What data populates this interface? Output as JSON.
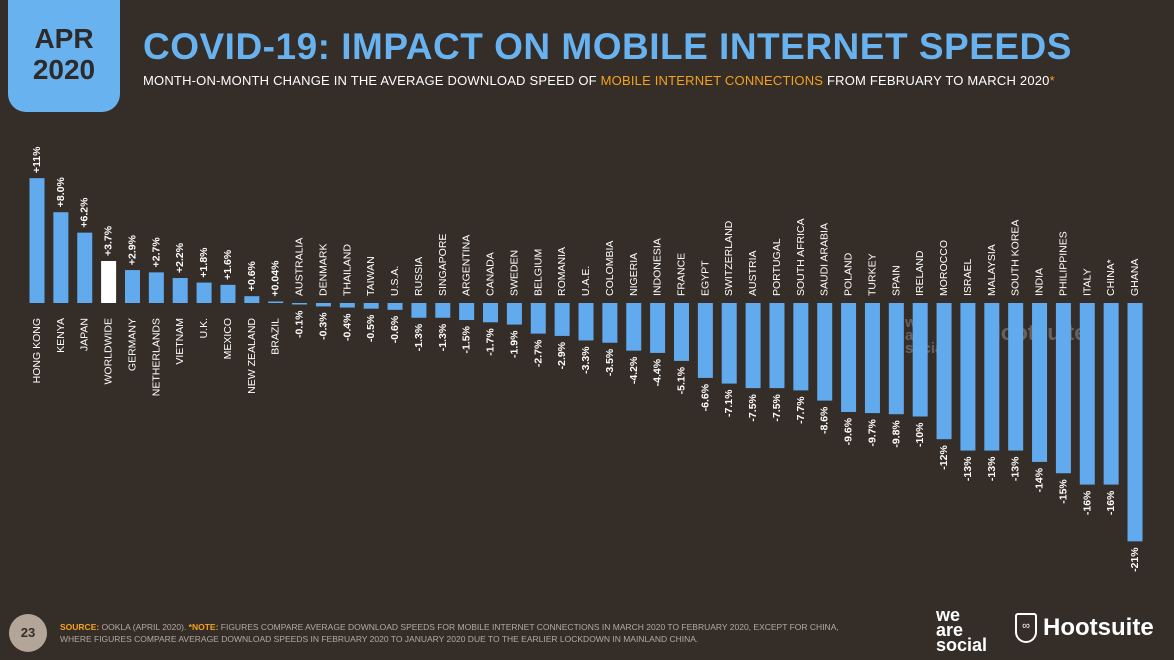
{
  "header": {
    "month": "APR",
    "year": "2020",
    "title": "COVID-19: IMPACT ON MOBILE INTERNET SPEEDS",
    "subtitle_pre": "MONTH-ON-MONTH CHANGE IN THE AVERAGE DOWNLOAD SPEED OF ",
    "subtitle_hl": "MOBILE INTERNET CONNECTIONS",
    "subtitle_post": " FROM FEBRUARY TO MARCH 2020",
    "subtitle_star": "*"
  },
  "footer": {
    "page": "23",
    "source_label": "SOURCE:",
    "source_text": " OOKLA (APRIL 2020). ",
    "note_label": "*NOTE:",
    "note_text": " FIGURES COMPARE AVERAGE DOWNLOAD SPEEDS FOR MOBILE INTERNET CONNECTIONS IN MARCH 2020 TO FEBRUARY 2020, EXCEPT FOR CHINA,",
    "note_text2": "WHERE FIGURES COMPARE AVERAGE DOWNLOAD SPEEDS IN FEBRUARY 2020 TO JANUARY 2020 DUE TO THE EARLIER LOCKDOWN IN MAINLAND CHINA.",
    "logo1": "we are social",
    "logo2": "Hootsuite"
  },
  "colors": {
    "bar": "#62aaee",
    "highlight": "#ffffff",
    "accent": "#f6a21d",
    "background": "#352d28"
  },
  "chart_data": {
    "type": "bar",
    "categories": [
      "HONG KONG",
      "KENYA",
      "JAPAN",
      "WORLDWIDE",
      "GERMANY",
      "NETHERLANDS",
      "VIETNAM",
      "U.K.",
      "MEXICO",
      "NEW ZEALAND",
      "BRAZIL",
      "AUSTRALIA",
      "DENMARK",
      "THAILAND",
      "TAIWAN",
      "U.S.A.",
      "RUSSIA",
      "SINGAPORE",
      "ARGENTINA",
      "CANADA",
      "SWEDEN",
      "BELGIUM",
      "ROMANIA",
      "U.A.E.",
      "COLOMBIA",
      "NIGERIA",
      "INDONESIA",
      "FRANCE",
      "EGYPT",
      "SWITZERLAND",
      "AUSTRIA",
      "PORTUGAL",
      "SOUTH AFRICA",
      "SAUDI ARABIA",
      "POLAND",
      "TURKEY",
      "SPAIN",
      "IRELAND",
      "MOROCCO",
      "ISRAEL",
      "MALAYSIA",
      "SOUTH KOREA",
      "INDIA",
      "PHILIPPINES",
      "ITALY",
      "CHINA*",
      "GHANA"
    ],
    "values": [
      11,
      8.0,
      6.2,
      3.7,
      2.9,
      2.7,
      2.2,
      1.8,
      1.6,
      0.6,
      0.04,
      -0.1,
      -0.3,
      -0.4,
      -0.5,
      -0.6,
      -1.3,
      -1.3,
      -1.5,
      -1.7,
      -1.9,
      -2.7,
      -2.9,
      -3.3,
      -3.5,
      -4.2,
      -4.4,
      -5.1,
      -6.6,
      -7.1,
      -7.5,
      -7.5,
      -7.7,
      -8.6,
      -9.6,
      -9.7,
      -9.8,
      -10,
      -12,
      -13,
      -13,
      -13,
      -14,
      -15,
      -16,
      -16,
      -21
    ],
    "labels": [
      "+11%",
      "+8.0%",
      "+6.2%",
      "+3.7%",
      "+2.9%",
      "+2.7%",
      "+2.2%",
      "+1.8%",
      "+1.6%",
      "+0.6%",
      "+0.04%",
      "-0.1%",
      "-0.3%",
      "-0.4%",
      "-0.5%",
      "-0.6%",
      "-1.3%",
      "-1.3%",
      "-1.5%",
      "-1.7%",
      "-1.9%",
      "-2.7%",
      "-2.9%",
      "-3.3%",
      "-3.5%",
      "-4.2%",
      "-4.4%",
      "-5.1%",
      "-6.6%",
      "-7.1%",
      "-7.5%",
      "-7.5%",
      "-7.7%",
      "-8.6%",
      "-9.6%",
      "-9.7%",
      "-9.8%",
      "-10%",
      "-12%",
      "-13%",
      "-13%",
      "-13%",
      "-14%",
      "-15%",
      "-16%",
      "-16%",
      "-21%"
    ],
    "highlight": "WORLDWIDE",
    "unit": "%",
    "grid": false,
    "legend": "none"
  }
}
